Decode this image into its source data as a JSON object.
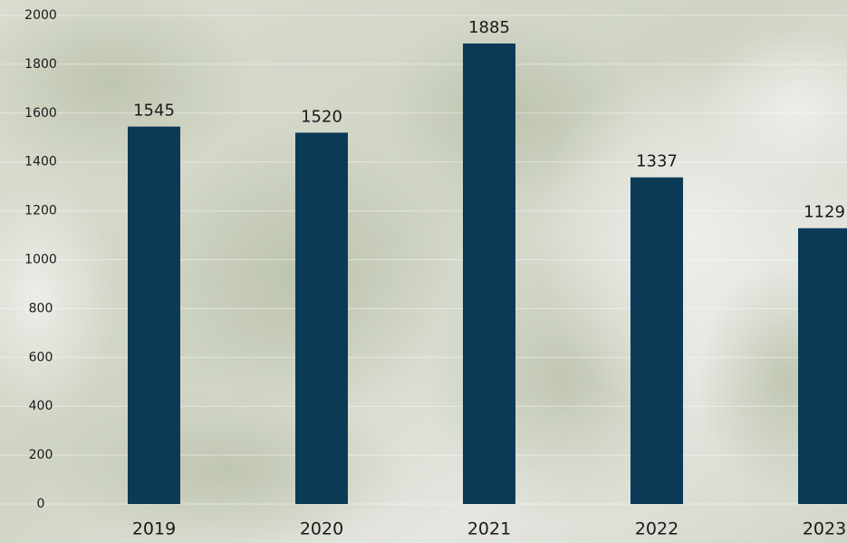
{
  "chart_data": {
    "type": "bar",
    "categories": [
      "2019",
      "2020",
      "2021",
      "2022",
      "2023"
    ],
    "values": [
      1545,
      1520,
      1885,
      1337,
      1129
    ],
    "color": "#0b3a57",
    "ylim": [
      0,
      2000
    ],
    "yticks": [
      0,
      200,
      400,
      600,
      800,
      1000,
      1200,
      1400,
      1600,
      1800,
      2000
    ],
    "grid": true
  }
}
